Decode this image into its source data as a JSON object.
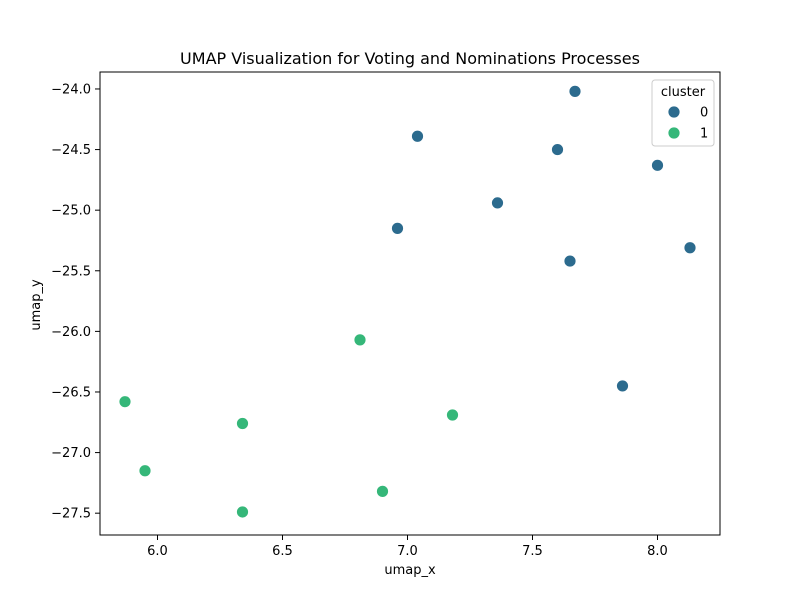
{
  "chart_data": {
    "type": "scatter",
    "title": "UMAP Visualization for Voting and Nominations Processes",
    "xlabel": "umap_x",
    "ylabel": "umap_y",
    "xlim": [
      5.77,
      8.25
    ],
    "ylim": [
      -27.68,
      -23.86
    ],
    "xticks": [
      6.0,
      6.5,
      7.0,
      7.5,
      8.0
    ],
    "xtick_labels": [
      "6.0",
      "6.5",
      "7.0",
      "7.5",
      "8.0"
    ],
    "yticks": [
      -24.0,
      -24.5,
      -25.0,
      -25.5,
      -26.0,
      -26.5,
      -27.0,
      -27.5
    ],
    "ytick_labels": [
      "−24.0",
      "−24.5",
      "−25.0",
      "−25.5",
      "−26.0",
      "−26.5",
      "−27.0",
      "−27.5"
    ],
    "grid": false,
    "legend": {
      "title": "cluster",
      "position": "top-right",
      "entries": [
        "0",
        "1"
      ]
    },
    "series": [
      {
        "name": "0",
        "color": "#2c6b8e",
        "x": [
          7.67,
          7.04,
          7.6,
          8.0,
          7.36,
          6.96,
          8.13,
          7.65,
          7.86
        ],
        "y": [
          -24.02,
          -24.39,
          -24.5,
          -24.63,
          -24.94,
          -25.15,
          -25.31,
          -25.42,
          -26.45
        ]
      },
      {
        "name": "1",
        "color": "#35b779",
        "x": [
          6.81,
          5.87,
          7.18,
          6.34,
          5.95,
          6.9,
          6.34
        ],
        "y": [
          -26.07,
          -26.58,
          -26.69,
          -26.76,
          -27.15,
          -27.32,
          -27.49
        ]
      }
    ]
  }
}
